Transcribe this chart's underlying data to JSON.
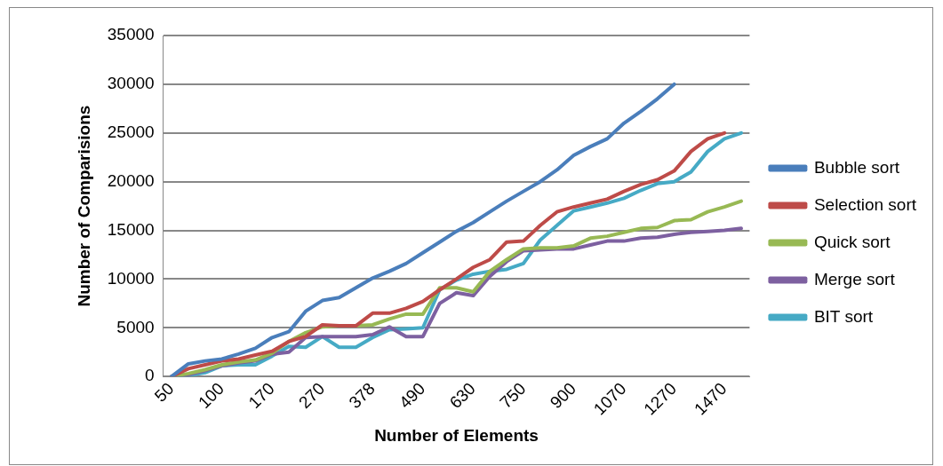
{
  "chart_data": {
    "type": "line",
    "xlabel": "Number of Elements",
    "ylabel": "Number of Comparisions",
    "categories": [
      "50",
      null,
      null,
      "100",
      null,
      null,
      "170",
      null,
      null,
      "270",
      null,
      null,
      "378",
      null,
      null,
      "490",
      null,
      null,
      "630",
      null,
      null,
      "750",
      null,
      null,
      "900",
      null,
      null,
      "1070",
      null,
      null,
      "1270",
      null,
      null,
      "1470",
      null
    ],
    "series": [
      {
        "name": "Bubble sort",
        "color": "#4a7ebb",
        "values": [
          0,
          1300,
          1600,
          1800,
          2300,
          2900,
          4000,
          4600,
          6700,
          7800,
          8100,
          9100,
          10100,
          10800,
          11600,
          12700,
          13800,
          14900,
          15800,
          16900,
          18000,
          19000,
          20000,
          21200,
          22700,
          23600,
          24400,
          26000,
          27200,
          28500,
          30000,
          null,
          null,
          null,
          null
        ]
      },
      {
        "name": "Selection sort",
        "color": "#be4b48",
        "values": [
          0,
          800,
          1200,
          1600,
          1800,
          2200,
          2600,
          3600,
          4100,
          5300,
          5200,
          5200,
          6500,
          6500,
          7000,
          7700,
          8900,
          10000,
          11200,
          12000,
          13800,
          13900,
          15500,
          16900,
          17400,
          17800,
          18200,
          19000,
          19700,
          20200,
          21100,
          23100,
          24400,
          25000,
          null
        ]
      },
      {
        "name": "Quick sort",
        "color": "#98b954",
        "values": [
          0,
          300,
          700,
          1200,
          1500,
          1700,
          2400,
          3600,
          4500,
          5100,
          5200,
          5200,
          5300,
          5900,
          6400,
          6400,
          9100,
          9100,
          8700,
          10800,
          12000,
          13100,
          13200,
          13200,
          13400,
          14200,
          14400,
          14800,
          15200,
          15300,
          16000,
          16100,
          16900,
          17400,
          18000
        ]
      },
      {
        "name": "Merge sort",
        "color": "#7d60a0",
        "values": [
          0,
          200,
          600,
          1100,
          1400,
          1600,
          2300,
          2500,
          4000,
          4100,
          4100,
          4100,
          4300,
          5100,
          4100,
          4100,
          7500,
          8600,
          8300,
          10300,
          11800,
          12900,
          13000,
          13100,
          13100,
          13500,
          13900,
          13900,
          14200,
          14300,
          14600,
          14800,
          14900,
          15000,
          15200
        ]
      },
      {
        "name": "BIT sort",
        "color": "#46aac5",
        "values": [
          0,
          100,
          400,
          1100,
          1200,
          1200,
          2100,
          3100,
          3000,
          4100,
          3000,
          3000,
          4000,
          4800,
          4900,
          5000,
          8900,
          9900,
          10500,
          10800,
          11000,
          11600,
          14000,
          15500,
          17000,
          17400,
          17800,
          18300,
          19100,
          19800,
          20000,
          21000,
          23100,
          24400,
          25000
        ]
      }
    ],
    "ylim": [
      0,
      35000
    ],
    "yticks": [
      0,
      5000,
      10000,
      15000,
      20000,
      25000,
      30000,
      35000
    ],
    "grid": "y",
    "legend": "right",
    "marker": "none",
    "line_style": "solid"
  }
}
